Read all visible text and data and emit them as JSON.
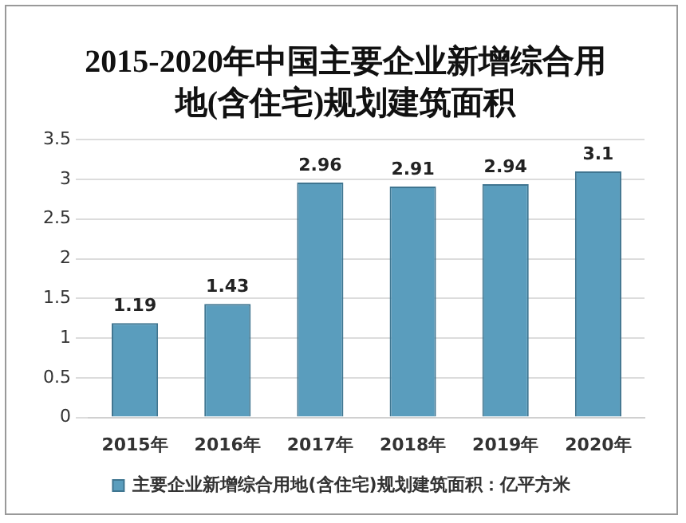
{
  "chart_data": {
    "type": "bar",
    "title": "2015-2020年中国主要企业新增综合用地(含住宅)规划建筑面积",
    "categories": [
      "2015年",
      "2016年",
      "2017年",
      "2018年",
      "2019年",
      "2020年"
    ],
    "series": [
      {
        "name": "主要企业新增综合用地(含住宅)规划建筑面积：亿平方米",
        "color": "#5a9dbd",
        "values": [
          1.19,
          1.43,
          2.96,
          2.91,
          2.94,
          3.1
        ]
      }
    ],
    "ylim": [
      0,
      3.5
    ],
    "yticks": [
      0,
      0.5,
      1,
      1.5,
      2,
      2.5,
      3,
      3.5
    ],
    "grid": "y",
    "legend": "bottom",
    "data_labels": true
  }
}
